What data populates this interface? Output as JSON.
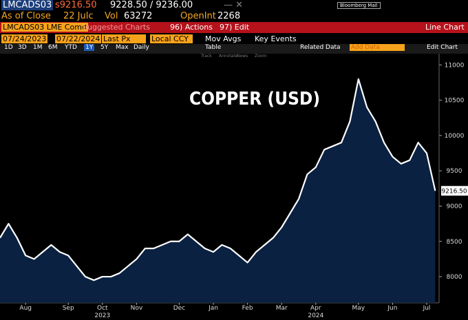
{
  "ui": {
    "ticker": "LMCADS03",
    "last": "s9216.50",
    "bid_ask": "9228.50 / 9236.00",
    "window_controls": "— ✕",
    "mail": "Bloomberg Mail",
    "as_of": "As of Close",
    "as_of_date": "22 Julc",
    "vol_label": "Vol",
    "vol": "63272",
    "oi_label": "OpenInt",
    "oi": "2268",
    "security": "LMCADS03 LME Comd",
    "suggested": "Suggested Charts",
    "actions": "96) Actions",
    "edit": "97) Edit",
    "chart_kind": "Line Chart",
    "start": "07/24/2023",
    "end": "07/22/2024",
    "field": "Last Px",
    "ccy": "Local CCY",
    "mov_avgs": "Mov Avgs",
    "key_events": "Key Events",
    "periods": [
      "1D",
      "3D",
      "1M",
      "6M",
      "YTD",
      "1Y",
      "5Y",
      "Max"
    ],
    "frequency": "Daily",
    "table": "Table",
    "related": "Related Data",
    "add_data": "Add Data",
    "edit_chart": "Edit Chart",
    "tools": [
      "Track",
      "Annotate",
      "News",
      "Zoom"
    ],
    "years": [
      "2023",
      "2024"
    ]
  },
  "chart_data": {
    "type": "line",
    "title": "COPPER (USD)",
    "categories": [
      null,
      null,
      null,
      "Aug",
      null,
      null,
      null,
      null,
      "Sep",
      null,
      null,
      null,
      "Oct",
      null,
      null,
      null,
      "Nov",
      null,
      null,
      null,
      null,
      "Dec",
      null,
      null,
      null,
      "Jan",
      null,
      null,
      null,
      "Feb",
      null,
      null,
      null,
      "Mar",
      null,
      null,
      null,
      "Apr",
      null,
      null,
      null,
      null,
      "May",
      null,
      null,
      null,
      "Jun",
      null,
      null,
      null,
      "Jul",
      null
    ],
    "series": [
      {
        "name": "LMCADS03",
        "color": "#ffffff",
        "fill": "#0b2142",
        "values": [
          8550,
          8750,
          8550,
          8300,
          8250,
          8350,
          8450,
          8350,
          8300,
          8150,
          8000,
          7950,
          8000,
          8000,
          8050,
          8150,
          8250,
          8400,
          8400,
          8450,
          8500,
          8500,
          8600,
          8500,
          8400,
          8350,
          8450,
          8400,
          8300,
          8200,
          8350,
          8450,
          8550,
          8700,
          8900,
          9100,
          9450,
          9550,
          9800,
          9850,
          9900,
          10200,
          10800,
          10400,
          10200,
          9900,
          9700,
          9600,
          9650,
          9900,
          9750,
          9216.5
        ],
        "value_labels": [
          null,
          null,
          null,
          null,
          null,
          null,
          null,
          null,
          null,
          null,
          null,
          null,
          null,
          null,
          null,
          null,
          null,
          null,
          null,
          null,
          null,
          null,
          null,
          null,
          null,
          null,
          null,
          null,
          null,
          null,
          null,
          null,
          null,
          null,
          null,
          null,
          null,
          null,
          null,
          null,
          null,
          null,
          null,
          null,
          null,
          null,
          null,
          null,
          null,
          null,
          null,
          "9216.50"
        ]
      }
    ],
    "ylim": [
      7630,
      11140
    ],
    "yticks": [
      8000,
      8500,
      9000,
      9500,
      10000,
      10500,
      11000
    ]
  }
}
